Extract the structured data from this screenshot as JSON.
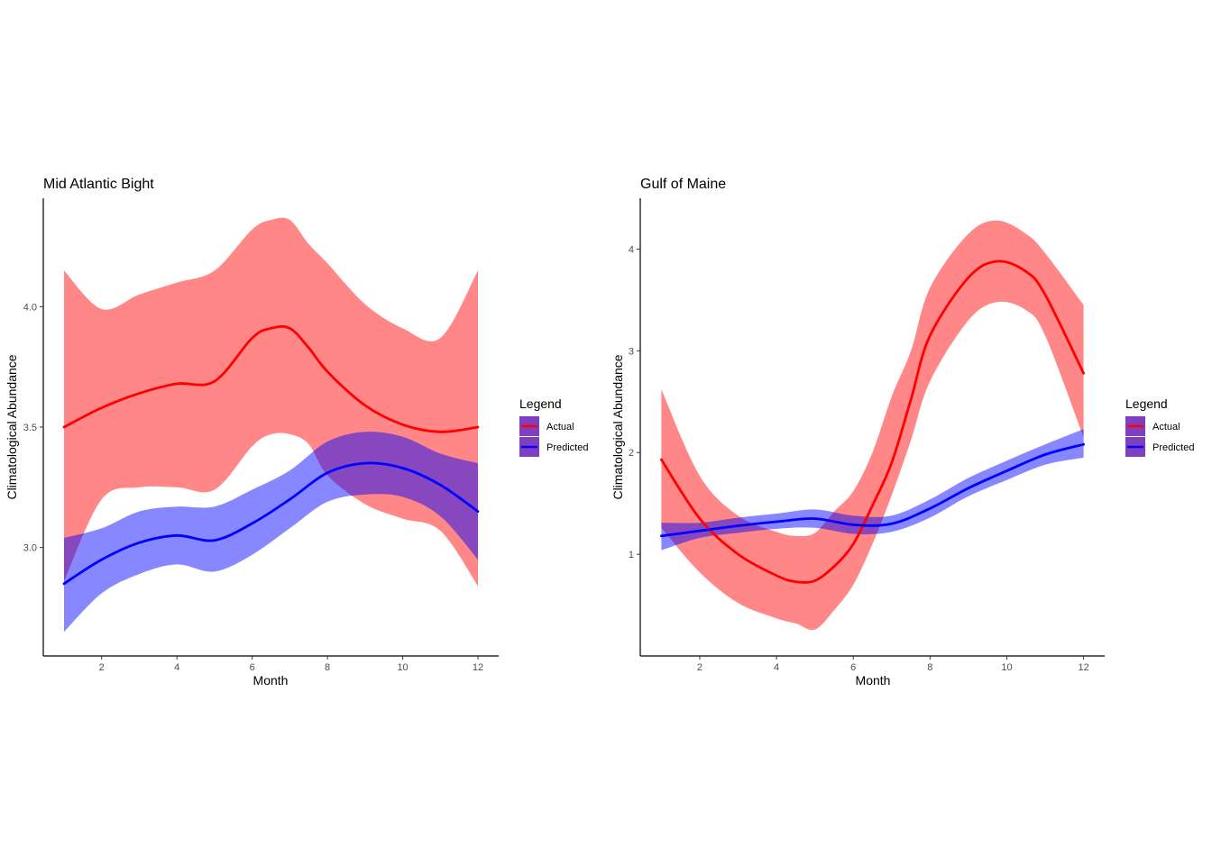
{
  "chart_data": [
    {
      "type": "line",
      "title": "Mid Atlantic Bight",
      "xlabel": "Month",
      "ylabel": "Climatological Abundance",
      "xlim": [
        0.45,
        12.55
      ],
      "ylim": [
        2.55,
        4.45
      ],
      "xticks": [
        2,
        4,
        6,
        8,
        10,
        12
      ],
      "yticks": [
        3.0,
        3.5,
        4.0
      ],
      "ytick_labels": [
        "3.0",
        "3.5",
        "4.0"
      ],
      "legend": {
        "title": "Legend",
        "position": "right"
      },
      "series": [
        {
          "name": "Actual",
          "color": "#ff0000",
          "fill": "#ff0000",
          "x": [
            1,
            2,
            3,
            4,
            5,
            6,
            6.5,
            7,
            7.5,
            8,
            9,
            10,
            11,
            12
          ],
          "y": [
            3.5,
            3.58,
            3.64,
            3.68,
            3.69,
            3.87,
            3.91,
            3.91,
            3.83,
            3.73,
            3.59,
            3.51,
            3.48,
            3.5
          ],
          "lower": [
            2.86,
            3.2,
            3.25,
            3.25,
            3.24,
            3.42,
            3.47,
            3.47,
            3.43,
            3.3,
            3.18,
            3.12,
            3.07,
            2.84
          ],
          "upper": [
            4.15,
            3.99,
            4.05,
            4.1,
            4.15,
            4.32,
            4.36,
            4.36,
            4.26,
            4.18,
            4.01,
            3.91,
            3.87,
            4.15
          ]
        },
        {
          "name": "Predicted",
          "color": "#0000ff",
          "fill": "#0000ff",
          "x": [
            1,
            2,
            3,
            4,
            5,
            6,
            7,
            8,
            9,
            10,
            11,
            12
          ],
          "y": [
            2.85,
            2.95,
            3.02,
            3.05,
            3.03,
            3.1,
            3.2,
            3.31,
            3.35,
            3.33,
            3.26,
            3.15
          ],
          "lower": [
            2.65,
            2.81,
            2.89,
            2.93,
            2.9,
            2.97,
            3.08,
            3.19,
            3.22,
            3.21,
            3.13,
            2.95
          ],
          "upper": [
            3.04,
            3.08,
            3.15,
            3.17,
            3.17,
            3.24,
            3.32,
            3.44,
            3.48,
            3.46,
            3.39,
            3.35
          ]
        }
      ]
    },
    {
      "type": "line",
      "title": "Gulf of Maine",
      "xlabel": "Month",
      "ylabel": "Climatological Abundance",
      "xlim": [
        0.45,
        12.55
      ],
      "ylim": [
        0.0,
        4.5
      ],
      "xticks": [
        2,
        4,
        6,
        8,
        10,
        12
      ],
      "yticks": [
        1,
        2,
        3,
        4
      ],
      "ytick_labels": [
        "1",
        "2",
        "3",
        "4"
      ],
      "legend": {
        "title": "Legend",
        "position": "right"
      },
      "series": [
        {
          "name": "Actual",
          "color": "#ff0000",
          "fill": "#ff0000",
          "x": [
            1,
            2,
            3,
            4,
            4.5,
            5,
            5.5,
            6,
            6.5,
            7,
            7.5,
            8,
            9,
            9.75,
            10.5,
            11,
            12
          ],
          "y": [
            1.93,
            1.35,
            1.0,
            0.79,
            0.73,
            0.74,
            0.88,
            1.1,
            1.48,
            1.9,
            2.52,
            3.15,
            3.72,
            3.88,
            3.78,
            3.55,
            2.78
          ],
          "lower": [
            1.26,
            0.82,
            0.52,
            0.37,
            0.32,
            0.26,
            0.45,
            0.7,
            1.1,
            1.58,
            2.12,
            2.7,
            3.3,
            3.48,
            3.4,
            3.15,
            2.15
          ],
          "upper": [
            2.62,
            1.77,
            1.38,
            1.22,
            1.18,
            1.21,
            1.42,
            1.62,
            2.0,
            2.55,
            3.0,
            3.62,
            4.15,
            4.28,
            4.15,
            3.96,
            3.45
          ]
        },
        {
          "name": "Predicted",
          "color": "#0000ff",
          "fill": "#0000ff",
          "x": [
            1,
            2,
            3,
            4,
            5,
            6,
            7,
            8,
            9,
            10,
            11,
            12
          ],
          "y": [
            1.18,
            1.23,
            1.28,
            1.32,
            1.35,
            1.29,
            1.3,
            1.45,
            1.65,
            1.82,
            1.98,
            2.08
          ],
          "lower": [
            1.04,
            1.16,
            1.21,
            1.25,
            1.26,
            1.2,
            1.22,
            1.36,
            1.57,
            1.73,
            1.88,
            1.95
          ],
          "upper": [
            1.31,
            1.31,
            1.36,
            1.4,
            1.44,
            1.38,
            1.38,
            1.54,
            1.75,
            1.92,
            2.08,
            2.23
          ]
        }
      ]
    }
  ]
}
